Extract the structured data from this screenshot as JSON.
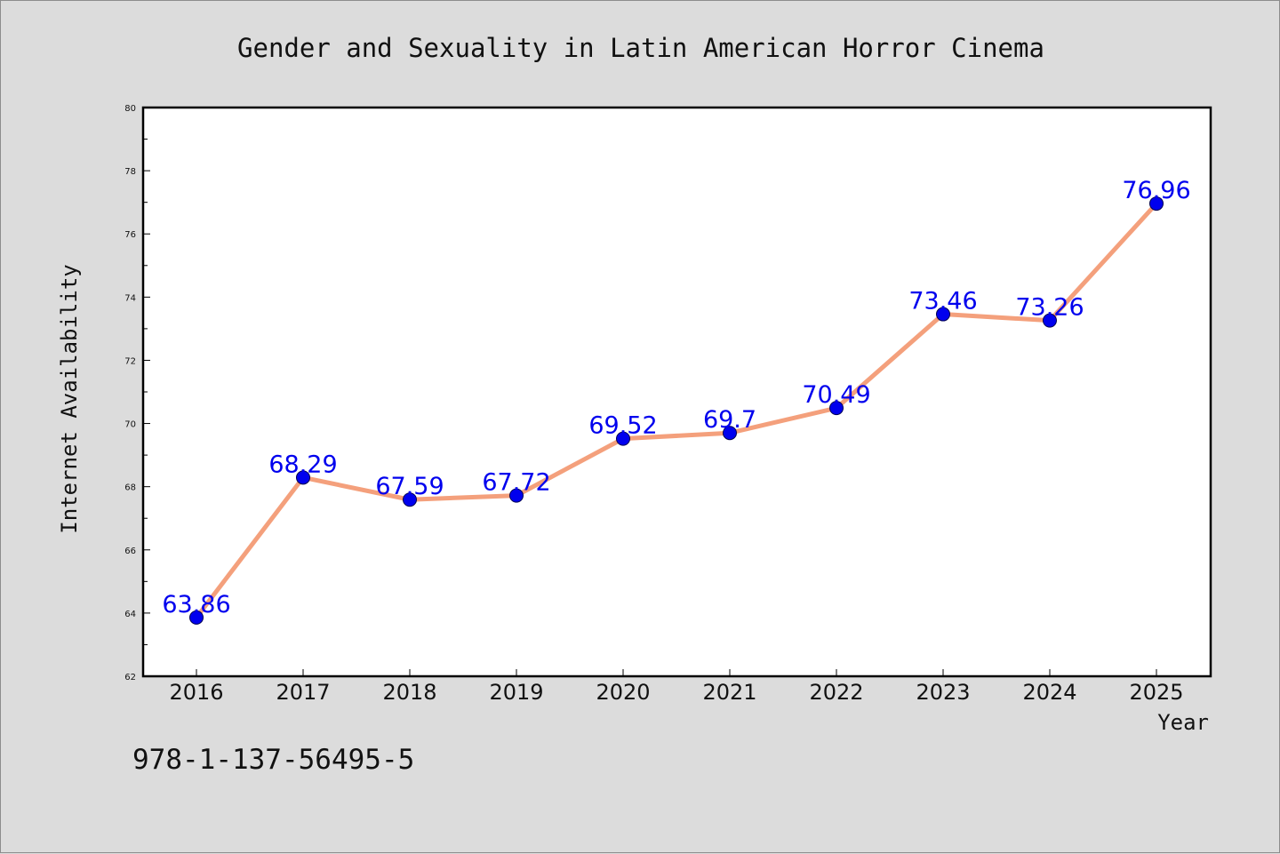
{
  "chart_data": {
    "type": "line",
    "title": "Gender and Sexuality in Latin American Horror Cinema",
    "xlabel": "Year",
    "ylabel": "Internet Availability",
    "categories": [
      "2016",
      "2017",
      "2018",
      "2019",
      "2020",
      "2021",
      "2022",
      "2023",
      "2024",
      "2025"
    ],
    "values": [
      63.86,
      68.29,
      67.59,
      67.72,
      69.52,
      69.7,
      70.49,
      73.46,
      73.26,
      76.96
    ],
    "data_labels": [
      "63.86",
      "68.29",
      "67.59",
      "67.72",
      "69.52",
      "69.7",
      "70.49",
      "73.46",
      "73.26",
      "76.96"
    ],
    "ylim": [
      62,
      80
    ],
    "yticks": [
      62,
      64,
      66,
      68,
      70,
      72,
      74,
      76,
      78,
      80
    ],
    "grid": false,
    "legend": "none",
    "line_color": "#f4a07c",
    "marker_color": "#0000ee",
    "label_color": "#0000ee",
    "annotation": "978-1-137-56495-5"
  }
}
